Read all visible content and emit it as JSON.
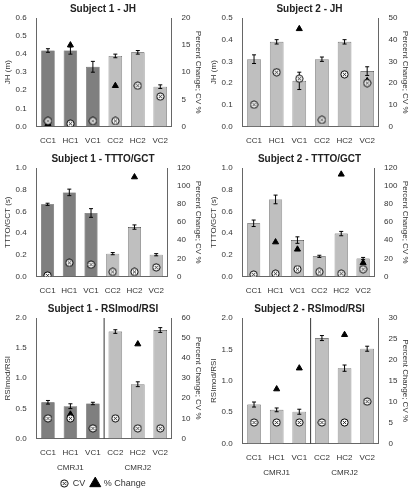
{
  "chart_data": [
    {
      "type": "bar",
      "title": "Subject 1 - JH",
      "ylabel": "JH (m)",
      "y2label": "Percent Change; CV %",
      "categories": [
        "CC1",
        "HC1",
        "VC1",
        "CC2",
        "HC2",
        "VC2"
      ],
      "ylim": [
        0,
        0.6
      ],
      "yticks": [
        {
          "value": 0,
          "label": "0.0"
        },
        0.1,
        0.2,
        0.3,
        0.4,
        0.5,
        0.6
      ],
      "y2lim": [
        0,
        20
      ],
      "y2ticks": [
        0,
        5,
        10,
        15,
        20
      ],
      "grid": false,
      "legend": false,
      "series": [
        {
          "type": "bar",
          "colors": [
            "#7f7f7f",
            "#7f7f7f",
            "#7f7f7f",
            "#bfbfbf",
            "#bfbfbf",
            "#bfbfbf"
          ],
          "values": [
            0.42,
            0.42,
            0.33,
            0.39,
            0.41,
            0.22
          ],
          "errors": [
            0.01,
            0.02,
            0.03,
            0.01,
            0.01,
            0.01
          ]
        },
        {
          "name": "CV",
          "type": "scatter",
          "axis": "y2",
          "marker": "circle",
          "color": "#000000",
          "values": [
            1.0,
            0.5,
            1.0,
            1.0,
            7.5,
            5.5
          ]
        },
        {
          "name": "% Change",
          "type": "scatter",
          "axis": "y2",
          "marker": "triangle",
          "color": "#000000",
          "values": [
            0.5,
            15.0,
            null,
            7.5,
            null,
            5.5
          ]
        }
      ]
    },
    {
      "type": "bar",
      "title": "Subject 2 - JH",
      "ylabel": "JH (m)",
      "y2label": "Percent Change; CV %",
      "categories": [
        "CC1",
        "HC1",
        "VC1",
        "CC2",
        "HC2",
        "VC2"
      ],
      "ylim": [
        0,
        0.5
      ],
      "yticks": [
        {
          "value": 0,
          "label": "0.0"
        },
        0.1,
        0.2,
        0.3,
        0.4,
        0.5
      ],
      "y2lim": [
        0,
        50
      ],
      "y2ticks": [
        0,
        10,
        20,
        30,
        40,
        50
      ],
      "grid": false,
      "legend": false,
      "series": [
        {
          "type": "bar",
          "colors": [
            "#bfbfbf",
            "#bfbfbf",
            "#bfbfbf",
            "#bfbfbf",
            "#bfbfbf",
            "#bfbfbf"
          ],
          "values": [
            0.31,
            0.39,
            0.21,
            0.31,
            0.39,
            0.255
          ],
          "errors": [
            0.02,
            0.01,
            0.04,
            0.01,
            0.01,
            0.02
          ]
        },
        {
          "name": "CV",
          "type": "scatter",
          "axis": "y2",
          "marker": "circle",
          "color": "#000000",
          "values": [
            10.0,
            25.0,
            22.0,
            3.0,
            24.0,
            20.0
          ]
        },
        {
          "name": "% Change",
          "type": "scatter",
          "axis": "y2",
          "marker": "triangle",
          "color": "#000000",
          "values": [
            null,
            25.0,
            45.0,
            null,
            24.0,
            21.0
          ]
        }
      ]
    },
    {
      "type": "bar",
      "title": "Subject 1 - TTTO/GCT",
      "ylabel": "TTTO/GCT (s)",
      "y2label": "Percent Change; CV %",
      "categories": [
        "CC1",
        "HC1",
        "VC1",
        "CC2",
        "HC2",
        "VC2"
      ],
      "ylim": [
        0,
        1.0
      ],
      "yticks": [
        {
          "value": 0,
          "label": "0.0"
        },
        0.2,
        0.4,
        0.6,
        0.8,
        {
          "value": 1,
          "label": "1.0"
        }
      ],
      "y2lim": [
        0,
        120
      ],
      "y2ticks": [
        0,
        20,
        40,
        60,
        80,
        100,
        120
      ],
      "grid": false,
      "legend": false,
      "series": [
        {
          "type": "bar",
          "colors": [
            "#7f7f7f",
            "#7f7f7f",
            "#7f7f7f",
            "#bfbfbf",
            "#bfbfbf",
            "#bfbfbf"
          ],
          "values": [
            0.665,
            0.775,
            0.585,
            0.21,
            0.455,
            0.2
          ],
          "errors": [
            0.01,
            0.03,
            0.04,
            0.01,
            0.02,
            0.01
          ]
        },
        {
          "name": "CV",
          "type": "scatter",
          "axis": "y2",
          "marker": "circle",
          "color": "#000000",
          "values": [
            1.0,
            15.0,
            13.0,
            5.0,
            5.0,
            10.0
          ]
        },
        {
          "name": "% Change",
          "type": "scatter",
          "axis": "y2",
          "marker": "triangle",
          "color": "#000000",
          "values": [
            null,
            15.0,
            13.0,
            null,
            110.0,
            10.0
          ]
        }
      ]
    },
    {
      "type": "bar",
      "title": "Subject 2 - TTTO/GCT",
      "ylabel": "TTTO/GCT (s)",
      "y2label": "Percent Change; CV %",
      "categories": [
        "CC1",
        "HC1",
        "VC1",
        "CC2",
        "HC2",
        "VC2"
      ],
      "ylim": [
        0,
        1.0
      ],
      "yticks": [
        {
          "value": 0,
          "label": "0.0"
        },
        0.2,
        0.4,
        0.6,
        0.8,
        {
          "value": 1,
          "label": "1.0"
        }
      ],
      "y2lim": [
        0,
        120
      ],
      "y2ticks": [
        0,
        20,
        40,
        60,
        80,
        100,
        120
      ],
      "grid": false,
      "legend": false,
      "series": [
        {
          "type": "bar",
          "colors": [
            "#bfbfbf",
            "#bfbfbf",
            "#bfbfbf",
            "#bfbfbf",
            "#bfbfbf",
            "#bfbfbf"
          ],
          "values": [
            0.49,
            0.71,
            0.335,
            0.185,
            0.395,
            0.165
          ],
          "errors": [
            0.03,
            0.04,
            0.03,
            0.01,
            0.02,
            0.01
          ]
        },
        {
          "name": "CV",
          "type": "scatter",
          "axis": "y2",
          "marker": "circle",
          "color": "#000000",
          "values": [
            2.0,
            3.0,
            8.0,
            5.0,
            3.0,
            8.0
          ]
        },
        {
          "name": "% Change",
          "type": "scatter",
          "axis": "y2",
          "marker": "triangle",
          "color": "#000000",
          "values": [
            null,
            38.0,
            30.0,
            null,
            113.0,
            15.0
          ]
        }
      ]
    },
    {
      "type": "bar",
      "title": "Subject 1 - RSImod/RSI",
      "ylabel": "RSImod/RSI",
      "y2label": "Percent Change; CV %",
      "categories": [
        "CC1",
        "HC1",
        "VC1",
        "CC2",
        "HC2",
        "VC2"
      ],
      "ylim": [
        0,
        2.0
      ],
      "yticks": [
        {
          "value": 0,
          "label": "0.0"
        },
        0.5,
        {
          "value": 1,
          "label": "1.0"
        },
        1.5,
        {
          "value": 2,
          "label": "2.0"
        }
      ],
      "y2lim": [
        0,
        60
      ],
      "y2ticks": [
        0,
        10,
        20,
        30,
        40,
        50,
        60
      ],
      "grid": false,
      "legend": "bottom",
      "annotations": [
        {
          "text": "CMRJ1",
          "x": "HC1"
        },
        {
          "text": "CMRJ2",
          "x": "HC2"
        }
      ],
      "series": [
        {
          "type": "bar",
          "colors": [
            "#7f7f7f",
            "#7f7f7f",
            "#7f7f7f",
            "#bfbfbf",
            "#bfbfbf",
            "#bfbfbf"
          ],
          "values": [
            0.6,
            0.535,
            0.58,
            1.775,
            0.9,
            1.8
          ],
          "errors": [
            0.03,
            0.04,
            0.02,
            0.03,
            0.04,
            0.04
          ]
        },
        {
          "name": "CV",
          "type": "scatter",
          "axis": "y2",
          "marker": "circle",
          "color": "#000000",
          "values": [
            10.0,
            10.0,
            5.0,
            10.0,
            5.0,
            5.0
          ]
        },
        {
          "name": "% Change",
          "type": "scatter",
          "axis": "y2",
          "marker": "triangle",
          "color": "#000000",
          "values": [
            null,
            12.0,
            5.0,
            null,
            47.0,
            5.0
          ]
        }
      ]
    },
    {
      "type": "bar",
      "title": "Subject 2 - RSImod/RSI",
      "ylabel": "RSImod/RSI",
      "y2label": "Percent Change; CV %",
      "categories": [
        "CC1",
        "HC1",
        "VC1",
        "CC2",
        "HC2",
        "VC2"
      ],
      "ylim": [
        0,
        2.0
      ],
      "yticks": [
        {
          "value": 0,
          "label": "0.0"
        },
        0.5,
        {
          "value": 1,
          "label": "1.0"
        },
        1.5,
        {
          "value": 2,
          "label": "2.0"
        }
      ],
      "y2lim": [
        0,
        30
      ],
      "y2ticks": [
        0,
        5,
        10,
        15,
        20,
        25,
        30
      ],
      "grid": false,
      "legend": false,
      "annotations": [
        {
          "text": "CMRJ1",
          "x": "HC1"
        },
        {
          "text": "CMRJ2",
          "x": "HC2"
        }
      ],
      "series": [
        {
          "type": "bar",
          "colors": [
            "#bfbfbf",
            "#bfbfbf",
            "#bfbfbf",
            "#bfbfbf",
            "#bfbfbf",
            "#bfbfbf"
          ],
          "values": [
            0.62,
            0.535,
            0.505,
            1.68,
            1.2,
            1.51
          ],
          "errors": [
            0.04,
            0.03,
            0.04,
            0.04,
            0.05,
            0.04
          ]
        },
        {
          "name": "CV",
          "type": "scatter",
          "axis": "y2",
          "marker": "circle",
          "color": "#000000",
          "values": [
            5.0,
            5.0,
            5.0,
            5.0,
            5.0,
            10.0
          ]
        },
        {
          "name": "% Change",
          "type": "scatter",
          "axis": "y2",
          "marker": "triangle",
          "color": "#000000",
          "values": [
            null,
            13.0,
            18.0,
            null,
            26.0,
            10.0
          ]
        }
      ]
    }
  ]
}
